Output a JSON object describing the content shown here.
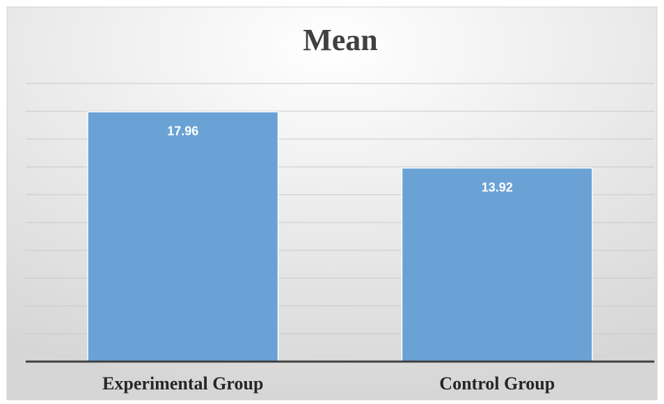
{
  "chart_data": {
    "type": "bar",
    "title": "Mean",
    "categories": [
      "Experimental Group",
      "Control Group"
    ],
    "values": [
      17.96,
      13.92
    ],
    "color": "#6aa2d6",
    "ylim": [
      0,
      20
    ],
    "yticks": [
      0,
      2,
      4,
      6,
      8,
      10,
      12,
      14,
      16,
      18,
      20
    ],
    "grid": true
  }
}
